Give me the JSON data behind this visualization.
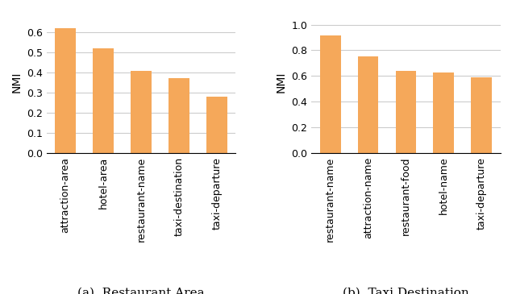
{
  "left": {
    "categories": [
      "attraction-area",
      "hotel-area",
      "restaurant-name",
      "taxi-destination",
      "taxi-departure"
    ],
    "values": [
      0.62,
      0.52,
      0.405,
      0.37,
      0.28
    ],
    "ylabel": "NMI",
    "ylim": [
      0.0,
      0.7
    ],
    "yticks": [
      0.0,
      0.1,
      0.2,
      0.3,
      0.4,
      0.5,
      0.6
    ],
    "caption": "(a)  Restaurant Area"
  },
  "right": {
    "categories": [
      "restaurant-name",
      "attraction-name",
      "restaurant-food",
      "hotel-name",
      "taxi-departure"
    ],
    "values": [
      0.915,
      0.75,
      0.64,
      0.625,
      0.59
    ],
    "ylabel": "NMI",
    "ylim": [
      0.0,
      1.1
    ],
    "yticks": [
      0.0,
      0.2,
      0.4,
      0.6,
      0.8,
      1.0
    ],
    "caption": "(b)  Taxi Destination"
  },
  "bar_color": "#F5A85A",
  "bar_edgecolor": "none",
  "grid_color": "#cccccc",
  "grid_linestyle": "-",
  "grid_linewidth": 0.8,
  "tick_fontsize": 9,
  "label_fontsize": 10,
  "caption_fontsize": 11,
  "bar_width": 0.55
}
